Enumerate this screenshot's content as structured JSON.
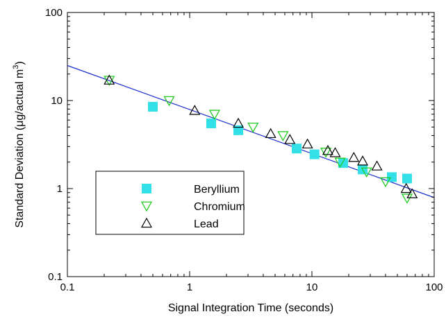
{
  "chart_data": {
    "type": "scatter",
    "x_scale": "log",
    "y_scale": "log",
    "xlim": [
      0.1,
      100
    ],
    "ylim": [
      0.1,
      100
    ],
    "xlabel": "Signal Integration Time (seconds)",
    "ylabel_prefix": "Standard Deviation (",
    "ylabel_mu": "μ",
    "ylabel_unit": "g/actual m",
    "ylabel_sup": "3",
    "ylabel_suffix": ")",
    "x_ticks": [
      0.1,
      1,
      10,
      100
    ],
    "x_tick_labels": [
      "0.1",
      "1",
      "10",
      "100"
    ],
    "y_ticks": [
      0.1,
      1,
      10,
      100
    ],
    "y_tick_labels": [
      "0.1",
      "1",
      "10",
      "100"
    ],
    "grid": false,
    "legend_position": "lower-left",
    "series": [
      {
        "name": "Beryllium",
        "marker": "filled-square",
        "color": "#33e0e8",
        "points": [
          [
            0.5,
            8.5
          ],
          [
            1.5,
            5.5
          ],
          [
            2.5,
            4.6
          ],
          [
            7.5,
            2.85
          ],
          [
            10.5,
            2.45
          ],
          [
            18,
            1.95
          ],
          [
            26,
            1.65
          ],
          [
            45,
            1.35
          ],
          [
            60,
            1.3
          ]
        ]
      },
      {
        "name": "Chromium",
        "marker": "open-triangle-down",
        "color": "#22cc22",
        "points": [
          [
            0.22,
            17
          ],
          [
            0.68,
            10
          ],
          [
            1.6,
            7.0
          ],
          [
            3.3,
            5.0
          ],
          [
            5.8,
            4.0
          ],
          [
            13,
            2.6
          ],
          [
            17,
            2.0
          ],
          [
            28,
            1.55
          ],
          [
            40,
            1.2
          ],
          [
            60,
            0.78
          ]
        ]
      },
      {
        "name": "Lead",
        "marker": "open-triangle-up",
        "color": "#000000",
        "points": [
          [
            0.22,
            17
          ],
          [
            1.1,
            7.7
          ],
          [
            2.5,
            5.5
          ],
          [
            4.6,
            4.2
          ],
          [
            6.6,
            3.6
          ],
          [
            9.2,
            3.2
          ],
          [
            13.5,
            2.7
          ],
          [
            15.5,
            2.55
          ],
          [
            22,
            2.25
          ],
          [
            26,
            2.05
          ],
          [
            34,
            1.8
          ],
          [
            59,
            1.0
          ],
          [
            66,
            0.87
          ]
        ]
      }
    ],
    "fit_line": {
      "color": "#1a2ccc",
      "coefficient": 7.9,
      "exponent": -0.5
    }
  }
}
